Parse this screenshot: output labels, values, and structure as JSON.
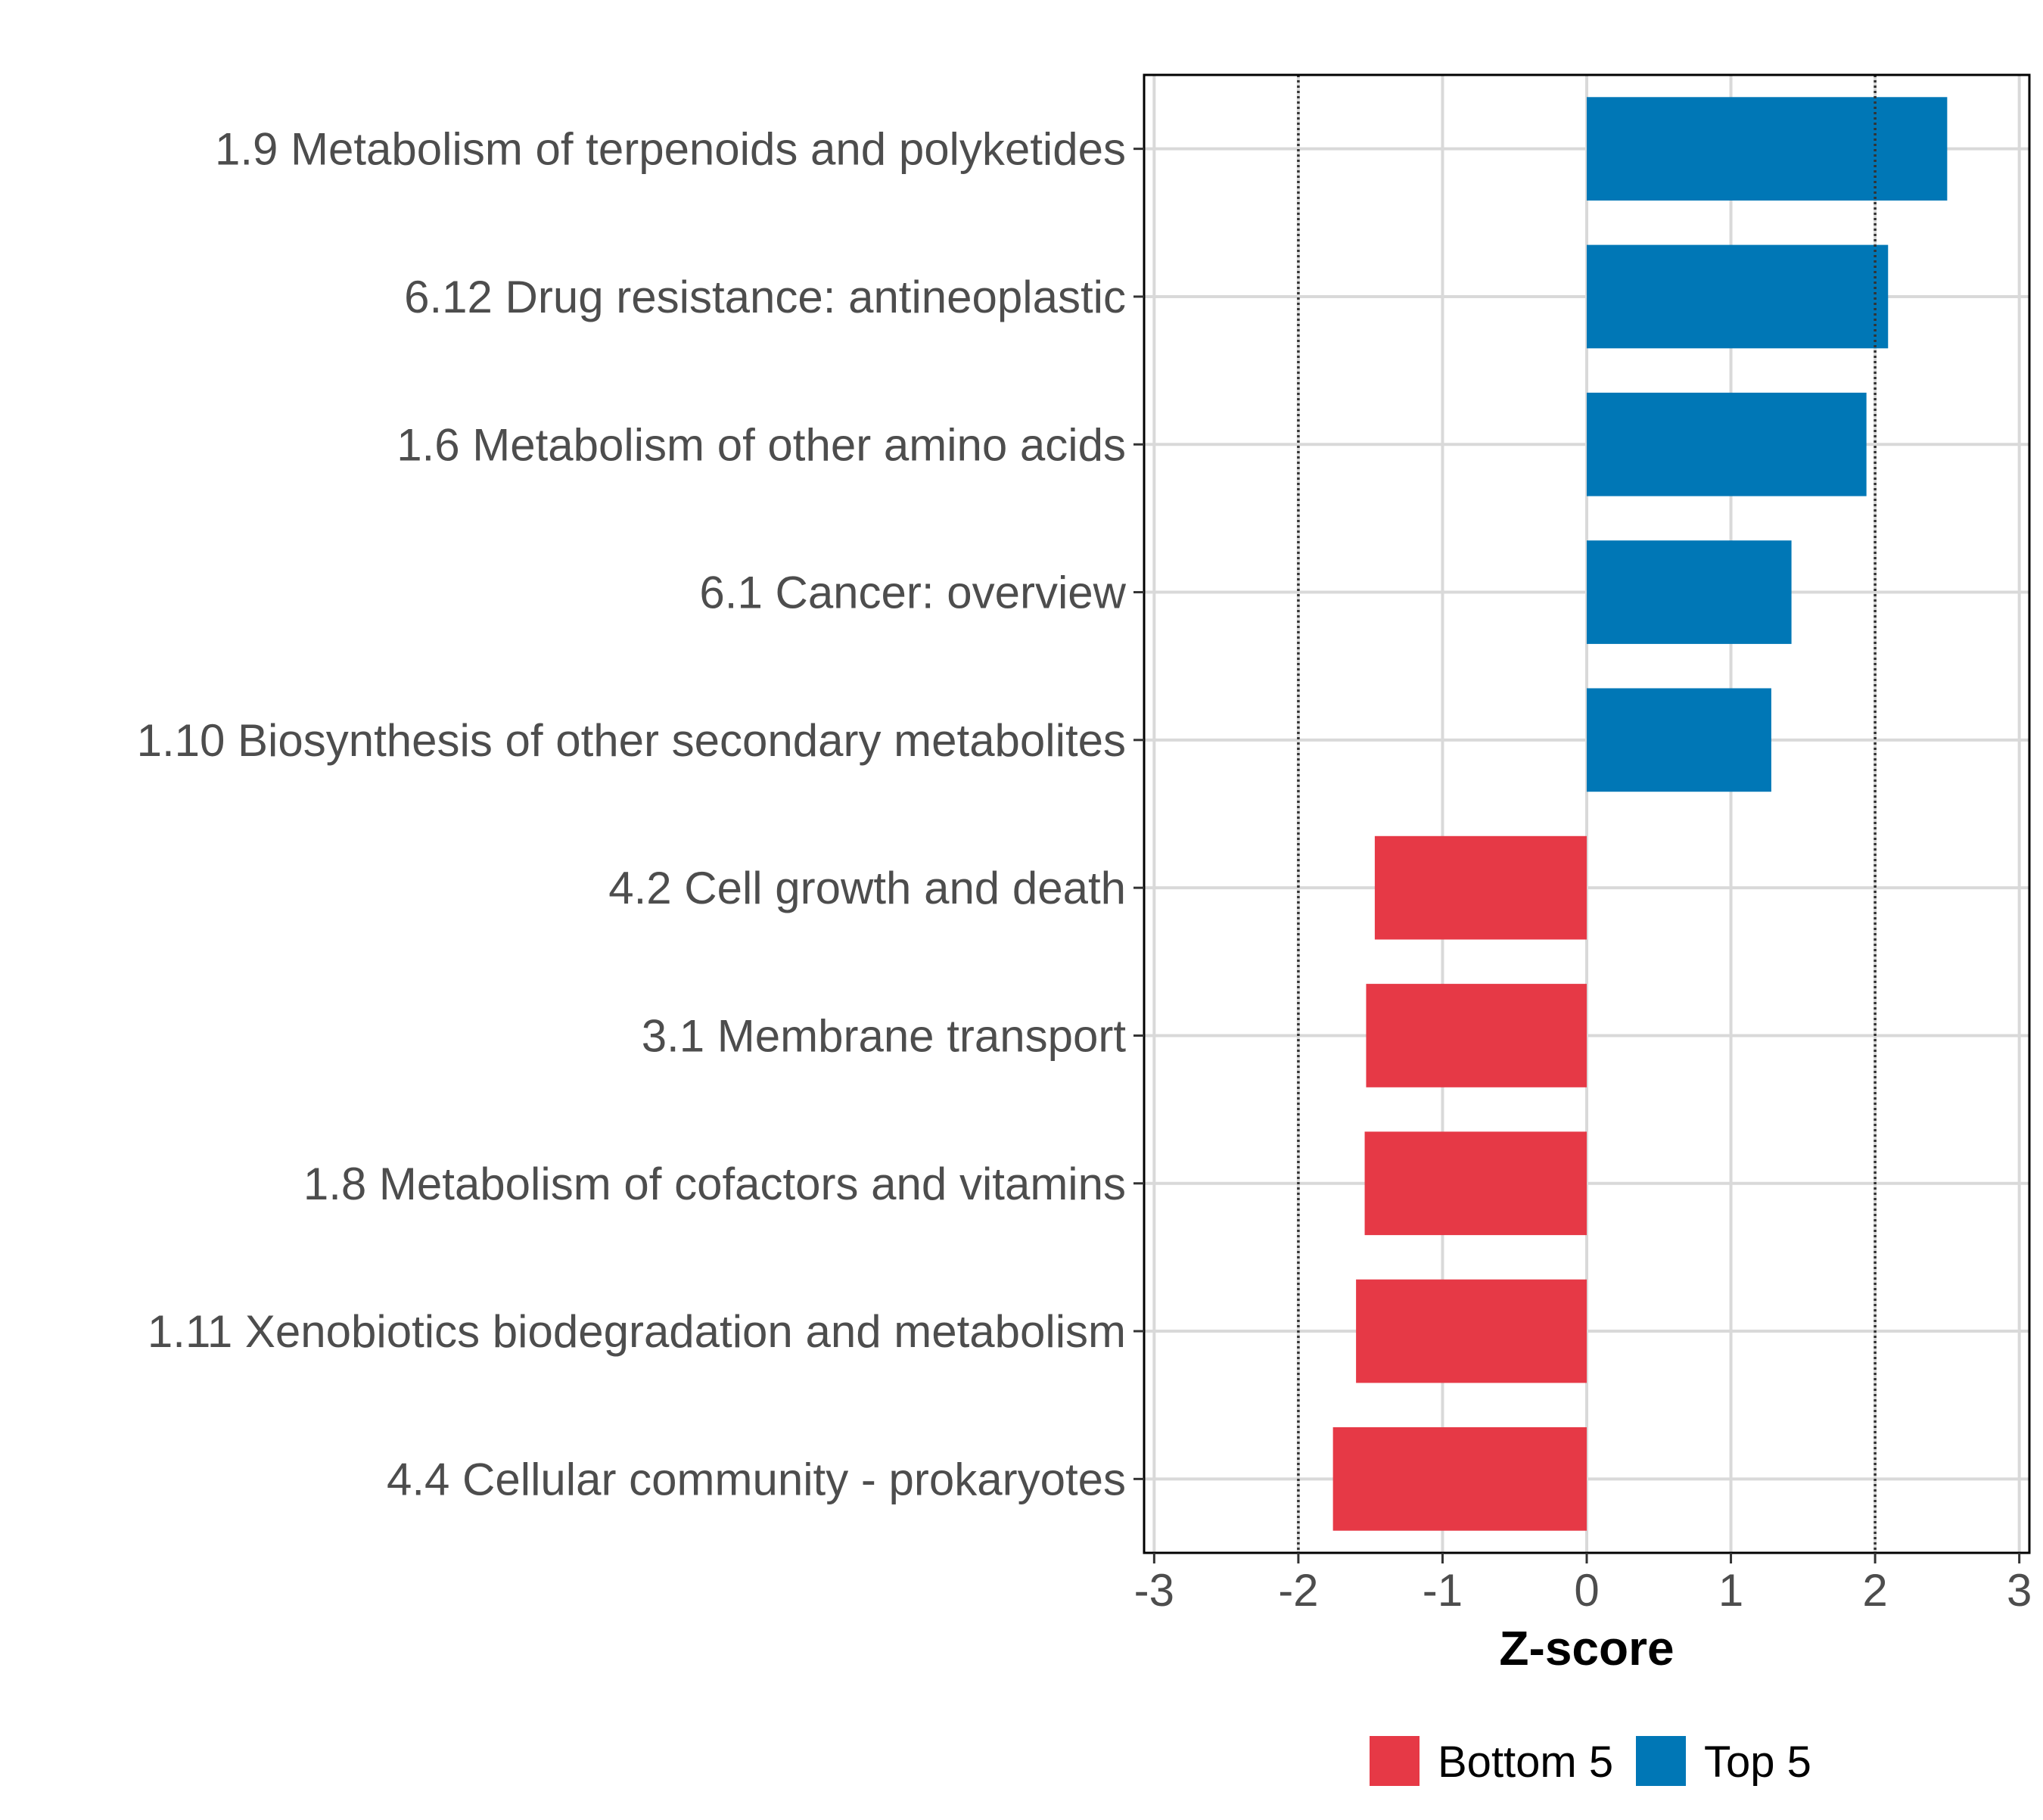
{
  "chart_data": {
    "type": "bar",
    "orientation": "horizontal",
    "categories": [
      "1.9 Metabolism of terpenoids and polyketides",
      "6.12 Drug resistance: antineoplastic",
      "1.6 Metabolism of other amino acids",
      "6.1 Cancer: overview",
      "1.10 Biosynthesis of other secondary metabolites",
      "4.2 Cell growth and death",
      "3.1 Membrane transport",
      "1.8 Metabolism of cofactors and vitamins",
      "1.11 Xenobiotics biodegradation and metabolism",
      "4.4 Cellular community - prokaryotes"
    ],
    "values": [
      2.5,
      2.09,
      1.94,
      1.42,
      1.28,
      -1.47,
      -1.53,
      -1.54,
      -1.6,
      -1.76
    ],
    "groups": [
      "Top 5",
      "Top 5",
      "Top 5",
      "Top 5",
      "Top 5",
      "Bottom 5",
      "Bottom 5",
      "Bottom 5",
      "Bottom 5",
      "Bottom 5"
    ],
    "xlabel": "Z-score",
    "ylabel": "",
    "xlim": [
      -3.07,
      3.07
    ],
    "xticks": [
      -3,
      -2,
      -1,
      0,
      1,
      2,
      3
    ],
    "tick_labels": [
      "-3",
      "-2",
      "-1",
      "0",
      "1",
      "2",
      "3"
    ],
    "reference_lines": [
      -2,
      2
    ],
    "grid": true,
    "legend": {
      "position": "bottom",
      "entries": [
        {
          "label": "Bottom 5",
          "color": "#E63946"
        },
        {
          "label": "Top 5",
          "color": "#0077B6"
        }
      ]
    }
  }
}
